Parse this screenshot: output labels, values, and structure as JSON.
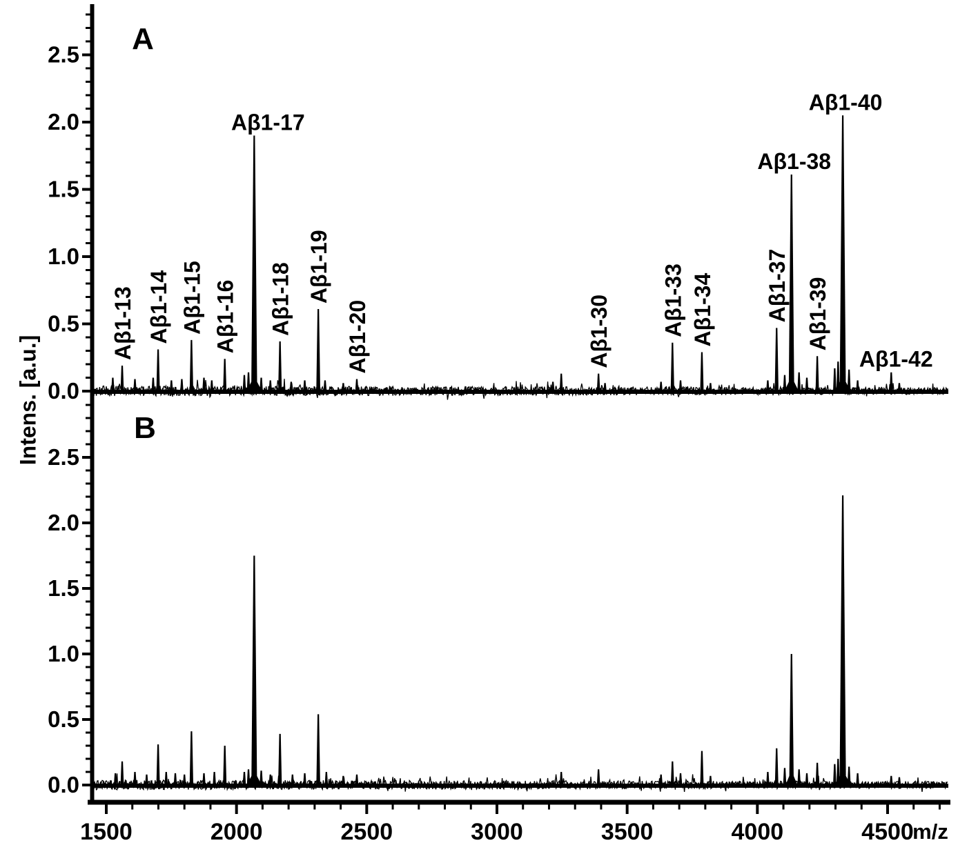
{
  "figure": {
    "ylabel": "Intens. [a.u.]",
    "xlabel": "m/z",
    "panels": [
      {
        "id": "A",
        "label": "A"
      },
      {
        "id": "B",
        "label": "B"
      }
    ],
    "color": "#000000",
    "background": "#ffffff"
  },
  "chart_data": [
    {
      "type": "line",
      "panel": "A",
      "title": "",
      "xlabel": "m/z",
      "ylabel": "Intens. [a.u.]",
      "xlim": [
        1450,
        4750
      ],
      "ylim": [
        -0.12,
        2.87
      ],
      "xticks": [
        1500,
        2000,
        2500,
        3000,
        3500,
        4000,
        4500
      ],
      "yticks": [
        0.0,
        0.5,
        1.0,
        1.5,
        2.0,
        2.5
      ],
      "grid": false,
      "legend": "none",
      "peaks": [
        {
          "label": "Aβ1-13",
          "mz": 1561,
          "intensity": 0.19,
          "label_style": "vertical"
        },
        {
          "label": "Aβ1-14",
          "mz": 1699,
          "intensity": 0.31,
          "label_style": "vertical"
        },
        {
          "label": "Aβ1-15",
          "mz": 1827,
          "intensity": 0.38,
          "label_style": "vertical"
        },
        {
          "label": "Aβ1-16",
          "mz": 1955,
          "intensity": 0.24,
          "label_style": "vertical"
        },
        {
          "label": "Aβ1-17",
          "mz": 2068,
          "intensity": 1.9,
          "label_style": "horizontal",
          "label_dx": 20
        },
        {
          "label": "Aβ1-18",
          "mz": 2167,
          "intensity": 0.37,
          "label_style": "vertical"
        },
        {
          "label": "Aβ1-19",
          "mz": 2314,
          "intensity": 0.61,
          "label_style": "vertical"
        },
        {
          "label": "Aβ1-20",
          "mz": 2462,
          "intensity": 0.09,
          "label_style": "vertical"
        },
        {
          "label": "Aβ1-30",
          "mz": 3390,
          "intensity": 0.13,
          "label_style": "vertical"
        },
        {
          "label": "Aβ1-33",
          "mz": 3674,
          "intensity": 0.36,
          "label_style": "vertical"
        },
        {
          "label": "Aβ1-34",
          "mz": 3787,
          "intensity": 0.29,
          "label_style": "vertical"
        },
        {
          "label": "Aβ1-37",
          "mz": 4074,
          "intensity": 0.47,
          "label_style": "vertical"
        },
        {
          "label": "Aβ1-38",
          "mz": 4131,
          "intensity": 1.61,
          "label_style": "horizontal",
          "label_dx": 4
        },
        {
          "label": "Aβ1-39",
          "mz": 4230,
          "intensity": 0.26,
          "label_style": "vertical"
        },
        {
          "label": "Aβ1-40",
          "mz": 4328,
          "intensity": 2.05,
          "label_style": "horizontal",
          "label_dx": 4
        },
        {
          "label": "Aβ1-42",
          "mz": 4514,
          "intensity": 0.14,
          "label_style": "horizontal",
          "label_dx": 7
        }
      ],
      "minor_peaks": [
        {
          "mz": 1525,
          "intensity": 0.1
        },
        {
          "mz": 1610,
          "intensity": 0.09
        },
        {
          "mz": 1680,
          "intensity": 0.1
        },
        {
          "mz": 1750,
          "intensity": 0.08
        },
        {
          "mz": 1790,
          "intensity": 0.09
        },
        {
          "mz": 1875,
          "intensity": 0.1
        },
        {
          "mz": 1905,
          "intensity": 0.08
        },
        {
          "mz": 2030,
          "intensity": 0.12
        },
        {
          "mz": 2046,
          "intensity": 0.14
        },
        {
          "mz": 2095,
          "intensity": 0.1
        },
        {
          "mz": 2130,
          "intensity": 0.08
        },
        {
          "mz": 2210,
          "intensity": 0.07
        },
        {
          "mz": 2262,
          "intensity": 0.08
        },
        {
          "mz": 2340,
          "intensity": 0.08
        },
        {
          "mz": 2410,
          "intensity": 0.06
        },
        {
          "mz": 3215,
          "intensity": 0.07
        },
        {
          "mz": 3247,
          "intensity": 0.13
        },
        {
          "mz": 3415,
          "intensity": 0.06
        },
        {
          "mz": 3630,
          "intensity": 0.07
        },
        {
          "mz": 3705,
          "intensity": 0.08
        },
        {
          "mz": 3820,
          "intensity": 0.06
        },
        {
          "mz": 4040,
          "intensity": 0.08
        },
        {
          "mz": 4105,
          "intensity": 0.12
        },
        {
          "mz": 4160,
          "intensity": 0.14
        },
        {
          "mz": 4190,
          "intensity": 0.1
        },
        {
          "mz": 4297,
          "intensity": 0.17
        },
        {
          "mz": 4310,
          "intensity": 0.22
        },
        {
          "mz": 4352,
          "intensity": 0.16
        },
        {
          "mz": 4385,
          "intensity": 0.08
        },
        {
          "mz": 4545,
          "intensity": 0.06
        }
      ],
      "noise": {
        "amplitude": 0.04,
        "seed": 7
      }
    },
    {
      "type": "line",
      "panel": "B",
      "title": "",
      "xlabel": "m/z",
      "ylabel": "Intens. [a.u.]",
      "xlim": [
        1450,
        4750
      ],
      "ylim": [
        -0.12,
        2.92
      ],
      "xticks": [
        1500,
        2000,
        2500,
        3000,
        3500,
        4000,
        4500
      ],
      "yticks": [
        0.0,
        0.5,
        1.0,
        1.5,
        2.0,
        2.5
      ],
      "grid": false,
      "legend": "none",
      "peaks": [
        {
          "mz": 1561,
          "intensity": 0.18
        },
        {
          "mz": 1699,
          "intensity": 0.31
        },
        {
          "mz": 1827,
          "intensity": 0.41
        },
        {
          "mz": 1955,
          "intensity": 0.3
        },
        {
          "mz": 2068,
          "intensity": 1.75
        },
        {
          "mz": 2167,
          "intensity": 0.39
        },
        {
          "mz": 2314,
          "intensity": 0.54
        },
        {
          "mz": 2462,
          "intensity": 0.08
        },
        {
          "mz": 3390,
          "intensity": 0.12
        },
        {
          "mz": 3674,
          "intensity": 0.18
        },
        {
          "mz": 3787,
          "intensity": 0.26
        },
        {
          "mz": 4074,
          "intensity": 0.28
        },
        {
          "mz": 4131,
          "intensity": 1.0
        },
        {
          "mz": 4230,
          "intensity": 0.17
        },
        {
          "mz": 4328,
          "intensity": 2.21
        },
        {
          "mz": 4514,
          "intensity": 0.07
        }
      ],
      "minor_peaks": [
        {
          "mz": 1535,
          "intensity": 0.09
        },
        {
          "mz": 1610,
          "intensity": 0.1
        },
        {
          "mz": 1655,
          "intensity": 0.08
        },
        {
          "mz": 1730,
          "intensity": 0.1
        },
        {
          "mz": 1765,
          "intensity": 0.09
        },
        {
          "mz": 1800,
          "intensity": 0.08
        },
        {
          "mz": 1875,
          "intensity": 0.09
        },
        {
          "mz": 1915,
          "intensity": 0.1
        },
        {
          "mz": 2030,
          "intensity": 0.1
        },
        {
          "mz": 2046,
          "intensity": 0.12
        },
        {
          "mz": 2095,
          "intensity": 0.11
        },
        {
          "mz": 2130,
          "intensity": 0.08
        },
        {
          "mz": 2215,
          "intensity": 0.08
        },
        {
          "mz": 2262,
          "intensity": 0.09
        },
        {
          "mz": 2345,
          "intensity": 0.1
        },
        {
          "mz": 2410,
          "intensity": 0.07
        },
        {
          "mz": 3247,
          "intensity": 0.1
        },
        {
          "mz": 3630,
          "intensity": 0.08
        },
        {
          "mz": 3705,
          "intensity": 0.09
        },
        {
          "mz": 3820,
          "intensity": 0.07
        },
        {
          "mz": 4040,
          "intensity": 0.1
        },
        {
          "mz": 4105,
          "intensity": 0.13
        },
        {
          "mz": 4160,
          "intensity": 0.12
        },
        {
          "mz": 4190,
          "intensity": 0.09
        },
        {
          "mz": 4297,
          "intensity": 0.16
        },
        {
          "mz": 4310,
          "intensity": 0.2
        },
        {
          "mz": 4352,
          "intensity": 0.14
        },
        {
          "mz": 4385,
          "intensity": 0.09
        },
        {
          "mz": 4545,
          "intensity": 0.06
        }
      ],
      "noise": {
        "amplitude": 0.04,
        "seed": 23
      }
    }
  ]
}
